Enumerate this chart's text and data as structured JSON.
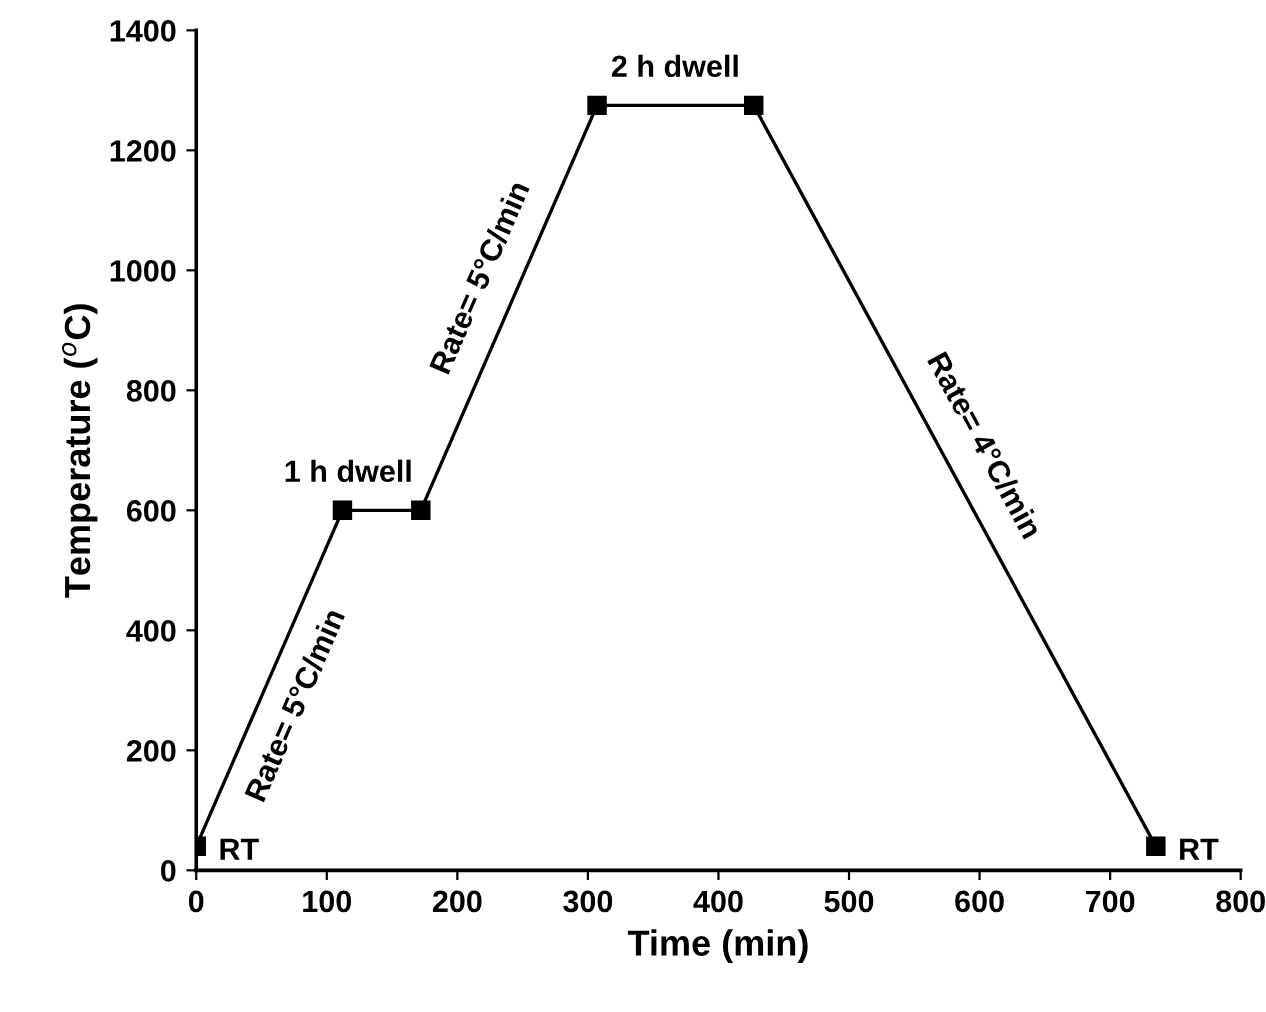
{
  "chart_data": {
    "type": "line",
    "xlabel": "Time (min)",
    "ylabel": "Temperature ($^{o}$C)",
    "x": [
      0,
      112,
      172,
      307,
      427,
      735
    ],
    "values": [
      40,
      600,
      600,
      1275,
      1275,
      40
    ],
    "color": "#000000",
    "marker": "square",
    "line_style": "solid",
    "grid": false,
    "xlim": [
      0,
      800
    ],
    "xticks": [
      0,
      100,
      200,
      300,
      400,
      500,
      600,
      700,
      800
    ],
    "ylim": [
      0,
      1400
    ],
    "yticks": [
      0,
      200,
      400,
      600,
      800,
      1000,
      1200,
      1400
    ],
    "annotations": [
      {
        "text": "RT",
        "x": 0,
        "y": 40
      },
      {
        "text": "1 h dwell",
        "x": 142,
        "y": 600
      },
      {
        "text": "2 h dwell",
        "x": 367,
        "y": 1275
      },
      {
        "text": "RT",
        "x": 735,
        "y": 40
      },
      {
        "text": "Rate= 5°C/min",
        "x": 56,
        "y": 320
      },
      {
        "text": "Rate= 5°C/min",
        "x": 240,
        "y": 940
      },
      {
        "text": "Rate= 4°C/min",
        "x": 581,
        "y": 660
      }
    ]
  }
}
